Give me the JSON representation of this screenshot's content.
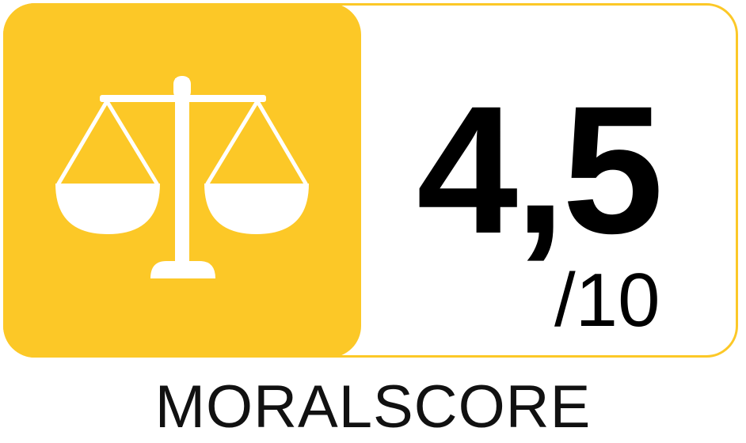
{
  "score": {
    "value": "4,5",
    "max": "/10"
  },
  "label": "MORALSCORE",
  "icon": "scales-of-justice-icon",
  "colors": {
    "accent": "#fcc827",
    "icon": "#ffffff",
    "text": "#000000",
    "background": "#ffffff"
  }
}
